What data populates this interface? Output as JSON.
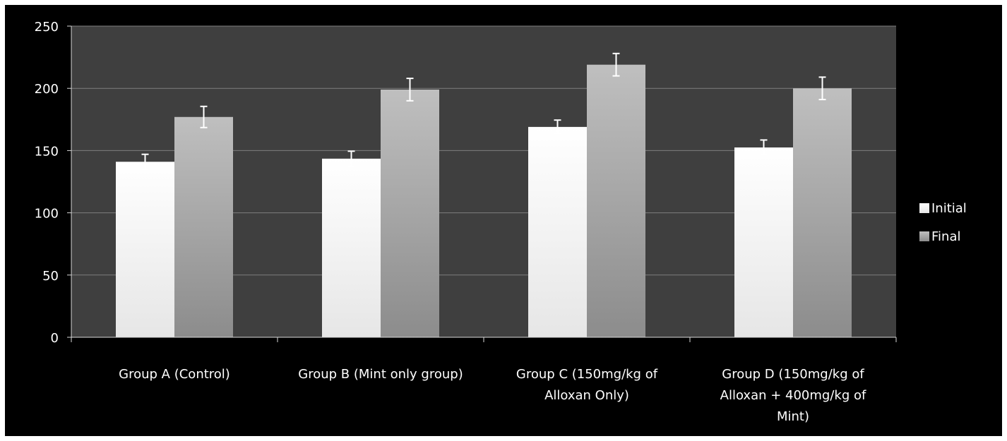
{
  "chart_data": {
    "type": "bar",
    "title": "",
    "xlabel": "",
    "ylabel": "",
    "ylim": [
      0,
      250
    ],
    "yticks": [
      0,
      50,
      100,
      150,
      200,
      250
    ],
    "yticks_labels": [
      "0",
      "50",
      "100",
      "150",
      "200",
      "250"
    ],
    "grid": true,
    "legend_position": "right",
    "categories": [
      "Group A (Control)",
      "Group B (Mint only group)",
      "Group C (150mg/kg of Alloxan Only)",
      "Group D (150mg/kg of Alloxan + 400mg/kg of Mint)"
    ],
    "category_lines": [
      [
        "Group A (Control)"
      ],
      [
        "Group B (Mint only group)"
      ],
      [
        "Group C (150mg/kg of",
        "Alloxan Only)"
      ],
      [
        "Group D (150mg/kg of",
        "Alloxan + 400mg/kg of",
        "Mint)"
      ]
    ],
    "series": [
      {
        "name": "Initial",
        "values": [
          141,
          143.5,
          169,
          152.5
        ],
        "errors": [
          6,
          6,
          5.5,
          6
        ],
        "color": "#ffffff"
      },
      {
        "name": "Final",
        "values": [
          177,
          199,
          219,
          200
        ],
        "errors": [
          8.5,
          9,
          9,
          9
        ],
        "color": "#a6a6a6"
      }
    ]
  },
  "colors": {
    "background": "#000000",
    "plot_area": "#3f3f3f",
    "gridline": "#7f7f7f",
    "text": "#ffffff"
  }
}
